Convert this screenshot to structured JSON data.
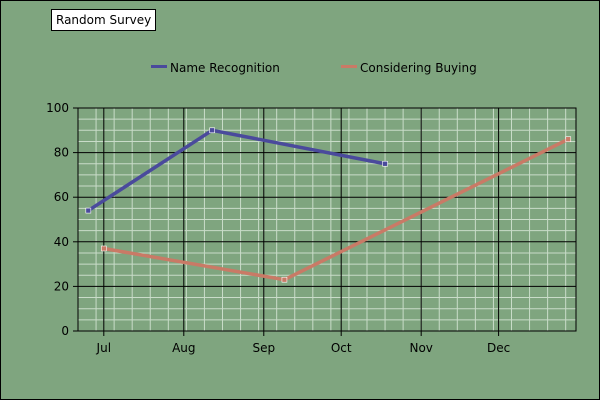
{
  "chart_data": {
    "type": "line",
    "title": "Random Survey",
    "xlabel": "",
    "ylabel": "",
    "categories": [
      "Jul",
      "Aug",
      "Sep",
      "Oct",
      "Nov",
      "Dec"
    ],
    "x_range": [
      "Jun 21",
      "Dec 31"
    ],
    "ylim": [
      0,
      100
    ],
    "y_ticks": [
      0,
      20,
      40,
      60,
      80,
      100
    ],
    "grid": true,
    "legend": "top",
    "background_color": "#7fa57f",
    "series": [
      {
        "name": "Name Recognition",
        "color": "#4a4a9c",
        "points": [
          {
            "x": "Jun 25",
            "y": 54
          },
          {
            "x": "Aug 12",
            "y": 90
          },
          {
            "x": "Oct 18",
            "y": 75
          }
        ]
      },
      {
        "name": "Considering Buying",
        "color": "#c97a66",
        "points": [
          {
            "x": "Jul 1",
            "y": 37
          },
          {
            "x": "Sep 9",
            "y": 23
          },
          {
            "x": "Dec 28",
            "y": 86
          }
        ]
      }
    ]
  }
}
